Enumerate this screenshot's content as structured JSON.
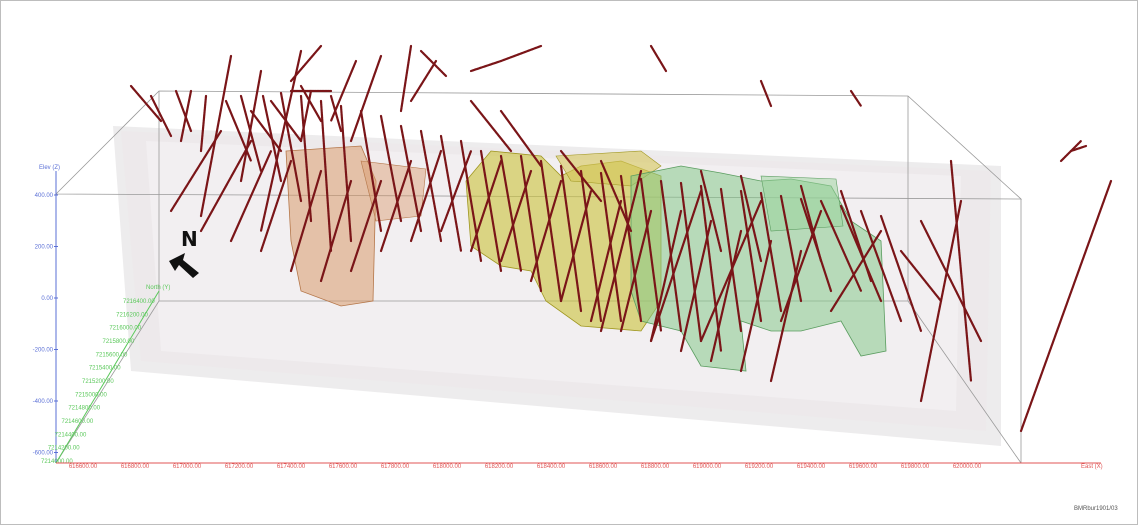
{
  "figure": {
    "north_label": "N",
    "credit": "BMRbur1901/03"
  },
  "axes": {
    "elev_title": "Elev (Z)",
    "northing_title": "North (Y)",
    "easting_title": "East (X)",
    "elev_ticks": [
      "400.00",
      "200.00",
      "0.00",
      "-200.00",
      "-400.00",
      "-600.00"
    ],
    "northing_ticks": [
      "7216400.00",
      "7216200.00",
      "7216000.00",
      "7215800.00",
      "7215600.00",
      "7215400.00",
      "7215200.00",
      "7215000.00",
      "7214800.00",
      "7214600.00",
      "7214400.00",
      "7214200.00",
      "7214000.00"
    ],
    "easting_ticks": [
      "616600.00",
      "616800.00",
      "617000.00",
      "617200.00",
      "617400.00",
      "617600.00",
      "617800.00",
      "618000.00",
      "618200.00",
      "618400.00",
      "618600.00",
      "618800.00",
      "619000.00",
      "619200.00",
      "619400.00",
      "619600.00",
      "619800.00",
      "620000.00"
    ]
  },
  "colors": {
    "elev_axis": "#5a6fd6",
    "northing_axis": "#5bc85b",
    "easting_axis": "#e05656",
    "drillholes": "#7a1518",
    "domain_orange": "#d99a6c",
    "domain_yellow": "#c9c23a",
    "domain_green": "#86c98a",
    "box_outline": "#9a9a9a",
    "shell": "#d8d4d6"
  }
}
